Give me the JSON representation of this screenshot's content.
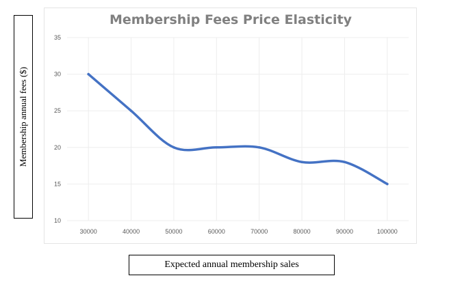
{
  "chart_data": {
    "type": "line",
    "title": "Membership Fees Price Elasticity",
    "xlabel": "Expected annual membership sales",
    "ylabel": "Membership annual fees ($)",
    "x": [
      30000,
      40000,
      50000,
      60000,
      70000,
      80000,
      90000,
      100000
    ],
    "x_tick_labels": [
      "30000",
      "40000",
      "50000",
      "60000",
      "70000",
      "80000",
      "90000",
      "100000"
    ],
    "series": [
      {
        "values": [
          30,
          25,
          20,
          20,
          20,
          18,
          18,
          15
        ]
      }
    ],
    "y_ticks": [
      10,
      15,
      20,
      25,
      30,
      35
    ],
    "ylim": [
      10,
      35
    ],
    "xlim": [
      25000,
      105000
    ],
    "grid": true,
    "legend": "none",
    "line_color": "#4472C4",
    "grid_color": "#ededed",
    "title_color": "#808080"
  }
}
